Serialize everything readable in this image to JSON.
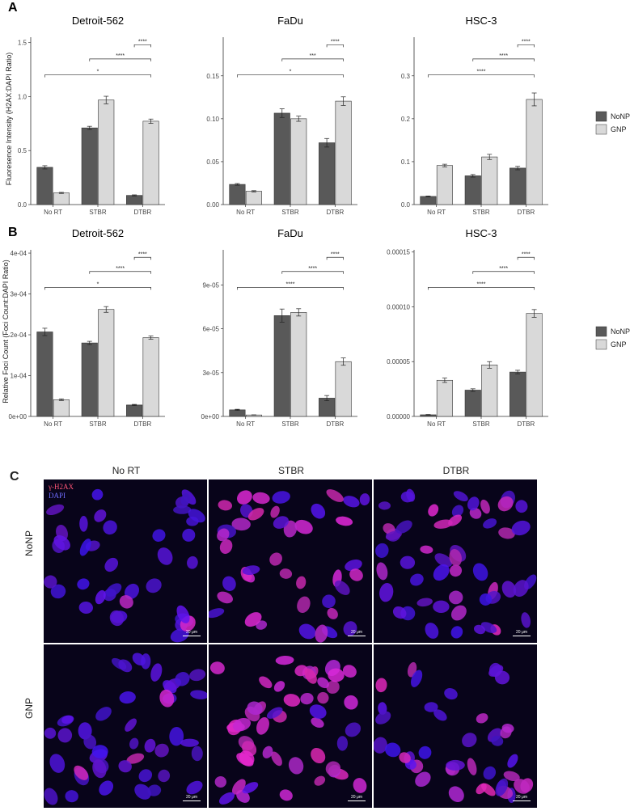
{
  "panels": {
    "a": "A",
    "b": "B",
    "c": "C"
  },
  "legend": {
    "series": [
      "NoNP",
      "GNP"
    ],
    "colors": [
      "#595959",
      "#d9d9d9"
    ]
  },
  "ylabels": {
    "a": "Fluoresence Intensity (H2AX:DAPI Ratio)",
    "b": "Relative Foci Count (Foci Count:DAPI Ratio)"
  },
  "chart_data": [
    {
      "id": "a1",
      "type": "bar",
      "title": "Detroit-562",
      "categories": [
        "No RT",
        "STBR",
        "DTBR"
      ],
      "series": [
        {
          "name": "NoNP",
          "values": [
            0.345,
            0.71,
            0.085
          ],
          "errors": [
            0.015,
            0.015,
            0.005
          ]
        },
        {
          "name": "GNP",
          "values": [
            0.108,
            0.968,
            0.772
          ],
          "errors": [
            0.005,
            0.035,
            0.02
          ]
        }
      ],
      "ylim": [
        0,
        1.55
      ],
      "ticks": [
        0,
        0.5,
        1.0,
        1.5
      ],
      "tick_labels": [
        "0.0",
        "0.5",
        "1.0",
        "1.5"
      ],
      "significance": [
        "*",
        "****",
        "****"
      ]
    },
    {
      "id": "a2",
      "type": "bar",
      "title": "FaDu",
      "categories": [
        "No RT",
        "STBR",
        "DTBR"
      ],
      "series": [
        {
          "name": "NoNP",
          "values": [
            0.0235,
            0.1065,
            0.072
          ],
          "errors": [
            0.001,
            0.005,
            0.005
          ]
        },
        {
          "name": "GNP",
          "values": [
            0.0155,
            0.1,
            0.1205
          ],
          "errors": [
            0.0007,
            0.003,
            0.005
          ]
        }
      ],
      "ylim": [
        0,
        0.195
      ],
      "ticks": [
        0,
        0.05,
        0.1,
        0.15
      ],
      "tick_labels": [
        "0.00",
        "0.05",
        "0.10",
        "0.15"
      ],
      "significance": [
        "*",
        "***",
        "****"
      ]
    },
    {
      "id": "a3",
      "type": "bar",
      "title": "HSC-3",
      "categories": [
        "No RT",
        "STBR",
        "DTBR"
      ],
      "series": [
        {
          "name": "NoNP",
          "values": [
            0.019,
            0.067,
            0.085
          ],
          "errors": [
            0.001,
            0.003,
            0.004
          ]
        },
        {
          "name": "GNP",
          "values": [
            0.091,
            0.111,
            0.245
          ],
          "errors": [
            0.003,
            0.006,
            0.015
          ]
        }
      ],
      "ylim": [
        0,
        0.39
      ],
      "ticks": [
        0,
        0.1,
        0.2,
        0.3
      ],
      "tick_labels": [
        "0.0",
        "0.1",
        "0.2",
        "0.3"
      ],
      "significance": [
        "****",
        "****",
        "****"
      ]
    },
    {
      "id": "b1",
      "type": "bar",
      "title": "Detroit-562",
      "categories": [
        "No RT",
        "STBR",
        "DTBR"
      ],
      "series": [
        {
          "name": "NoNP",
          "values": [
            0.000207,
            0.00018,
            2.8e-05
          ],
          "errors": [
            9e-06,
            4e-06,
            1.5e-06
          ]
        },
        {
          "name": "GNP",
          "values": [
            4.1e-05,
            0.000262,
            0.000193
          ],
          "errors": [
            2e-06,
            7e-06,
            4e-06
          ]
        }
      ],
      "ylim": [
        0,
        0.000408
      ],
      "ticks": [
        0,
        0.0001,
        0.0002,
        0.0003,
        0.0004
      ],
      "tick_labels": [
        "0e+00",
        "1e-04",
        "2e-04",
        "3e-04",
        "4e-04"
      ],
      "significance": [
        "*",
        "****",
        "****"
      ]
    },
    {
      "id": "b2",
      "type": "bar",
      "title": "FaDu",
      "categories": [
        "No RT",
        "STBR",
        "DTBR"
      ],
      "series": [
        {
          "name": "NoNP",
          "values": [
            4.5e-06,
            6.9e-05,
            1.25e-05
          ],
          "errors": [
            4e-07,
            4.5e-06,
            1.8e-06
          ]
        },
        {
          "name": "GNP",
          "values": [
            1e-06,
            7.12e-05,
            3.75e-05
          ],
          "errors": [
            1e-07,
            2.5e-06,
            2.5e-06
          ]
        }
      ],
      "ylim": [
        0,
        0.000114
      ],
      "ticks": [
        0,
        3e-05,
        6e-05,
        9e-05
      ],
      "tick_labels": [
        "0e+00",
        "3e-05",
        "6e-05",
        "9e-05"
      ],
      "significance": [
        "****",
        "****",
        "****"
      ]
    },
    {
      "id": "b3",
      "type": "bar",
      "title": "HSC-3",
      "categories": [
        "No RT",
        "STBR",
        "DTBR"
      ],
      "series": [
        {
          "name": "NoNP",
          "values": [
            1.5e-06,
            2.4e-05,
            4.05e-05
          ],
          "errors": [
            3e-07,
            1.2e-06,
            1.6e-06
          ]
        },
        {
          "name": "GNP",
          "values": [
            3.3e-05,
            4.7e-05,
            9.4e-05
          ],
          "errors": [
            2e-06,
            3e-06,
            3.5e-06
          ]
        }
      ],
      "ylim": [
        0,
        0.000152
      ],
      "ticks": [
        0,
        5e-05,
        0.0001,
        0.00015
      ],
      "tick_labels": [
        "0.00000",
        "0.00005",
        "0.00010",
        "0.00015"
      ],
      "significance": [
        "****",
        "****",
        "****"
      ]
    }
  ],
  "micrograph": {
    "columns": [
      "No RT",
      "STBR",
      "DTBR"
    ],
    "rows": [
      "NoNP",
      "GNP"
    ],
    "stain_gamma": "γ-H2AX",
    "stain_dapi": "DAPI",
    "scale_label": "20 μm",
    "gamma_level": [
      [
        0.05,
        0.65,
        0.35
      ],
      [
        0.12,
        0.85,
        0.55
      ]
    ]
  }
}
